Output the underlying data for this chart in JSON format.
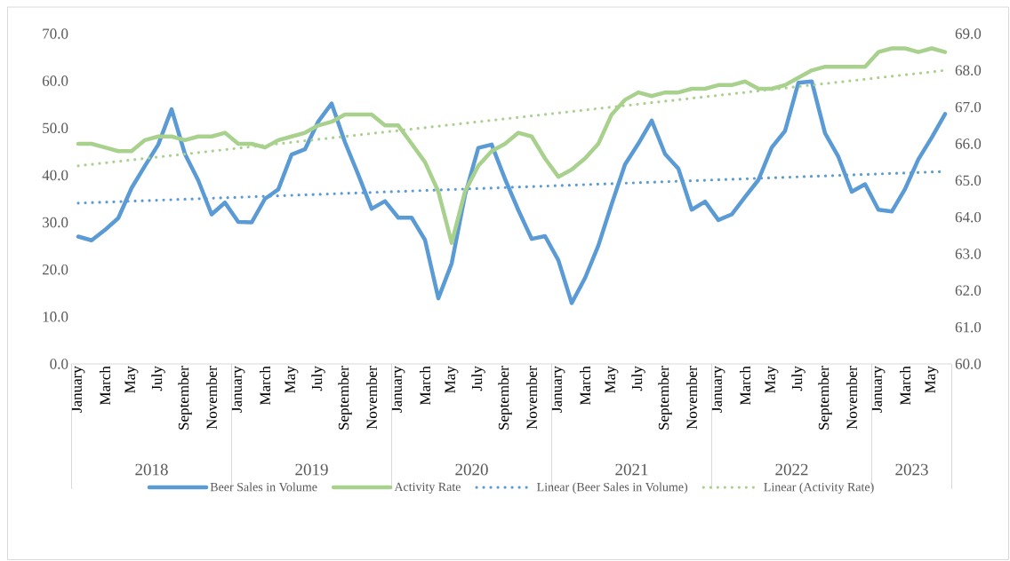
{
  "chart_data": {
    "type": "line",
    "x": [
      "2018-01",
      "2018-02",
      "2018-03",
      "2018-04",
      "2018-05",
      "2018-06",
      "2018-07",
      "2018-08",
      "2018-09",
      "2018-10",
      "2018-11",
      "2018-12",
      "2019-01",
      "2019-02",
      "2019-03",
      "2019-04",
      "2019-05",
      "2019-06",
      "2019-07",
      "2019-08",
      "2019-09",
      "2019-10",
      "2019-11",
      "2019-12",
      "2020-01",
      "2020-02",
      "2020-03",
      "2020-04",
      "2020-05",
      "2020-06",
      "2020-07",
      "2020-08",
      "2020-09",
      "2020-10",
      "2020-11",
      "2020-12",
      "2021-01",
      "2021-02",
      "2021-03",
      "2021-04",
      "2021-05",
      "2021-06",
      "2021-07",
      "2021-08",
      "2021-09",
      "2021-10",
      "2021-11",
      "2021-12",
      "2022-01",
      "2022-02",
      "2022-03",
      "2022-04",
      "2022-05",
      "2022-06",
      "2022-07",
      "2022-08",
      "2022-09",
      "2022-10",
      "2022-11",
      "2022-12",
      "2023-01",
      "2023-02",
      "2023-03",
      "2023-04",
      "2023-05",
      "2023-06"
    ],
    "series": [
      {
        "name": "Beer Sales in Volume",
        "color": "#5b9bd5",
        "values": [
          27.0,
          26.2,
          28.4,
          30.9,
          37.3,
          42.0,
          46.5,
          54.0,
          44.5,
          38.9,
          31.7,
          34.2,
          30.1,
          30.0,
          35.0,
          37.0,
          44.4,
          45.5,
          51.4,
          55.2,
          47.0,
          40.1,
          32.9,
          34.5,
          31.0,
          31.0,
          26.3,
          13.9,
          21.3,
          35.8,
          45.8,
          46.5,
          39.2,
          32.6,
          26.5,
          27.1,
          22.0,
          12.9,
          18.2,
          25.1,
          33.9,
          42.3,
          46.7,
          51.6,
          44.5,
          41.4,
          32.7,
          34.4,
          30.5,
          31.7,
          35.4,
          39.0,
          45.9,
          49.4,
          59.6,
          59.9,
          48.9,
          43.9,
          36.5,
          38.1,
          32.7,
          32.3,
          37.1,
          43.4,
          48.0,
          53.0
        ]
      },
      {
        "name": "Activity Rate",
        "color": "#a9d18e",
        "axis": "y2",
        "values": [
          66.0,
          66.0,
          65.9,
          65.8,
          65.8,
          66.1,
          66.2,
          66.2,
          66.1,
          66.2,
          66.2,
          66.3,
          66.0,
          66.0,
          65.9,
          66.1,
          66.2,
          66.3,
          66.5,
          66.6,
          66.8,
          66.8,
          66.8,
          66.5,
          66.5,
          66.0,
          65.5,
          64.7,
          63.3,
          64.7,
          65.4,
          65.8,
          66.0,
          66.3,
          66.2,
          65.6,
          65.1,
          65.3,
          65.6,
          66.0,
          66.8,
          67.2,
          67.4,
          67.3,
          67.4,
          67.4,
          67.5,
          67.5,
          67.6,
          67.6,
          67.7,
          67.5,
          67.5,
          67.6,
          67.8,
          68.0,
          68.1,
          68.1,
          68.1,
          68.1,
          68.5,
          68.6,
          68.6,
          68.5,
          68.6,
          68.5
        ]
      },
      {
        "name": "Linear (Beer Sales in Volume)",
        "color": "#5b9bd5",
        "line_style": "dotted",
        "x": [
          "2018-01",
          "2023-06"
        ],
        "values": [
          34.1,
          40.8
        ]
      },
      {
        "name": "Linear (Activity Rate)",
        "color": "#a9d18e",
        "line_style": "dotted",
        "axis": "y2",
        "x": [
          "2018-01",
          "2023-06"
        ],
        "values": [
          65.4,
          68.0
        ]
      }
    ],
    "xlim": [
      "2017-12-16",
      "2023-06-16"
    ],
    "xticks": [
      {
        "value": "2018-01",
        "label": "January"
      },
      {
        "value": "2018-03",
        "label": "March"
      },
      {
        "value": "2018-05",
        "label": "May"
      },
      {
        "value": "2018-07",
        "label": "July"
      },
      {
        "value": "2018-09",
        "label": "September"
      },
      {
        "value": "2018-11",
        "label": "November"
      },
      {
        "value": "2019-01",
        "label": "January"
      },
      {
        "value": "2019-03",
        "label": "March"
      },
      {
        "value": "2019-05",
        "label": "May"
      },
      {
        "value": "2019-07",
        "label": "July"
      },
      {
        "value": "2019-09",
        "label": "September"
      },
      {
        "value": "2019-11",
        "label": "November"
      },
      {
        "value": "2020-01",
        "label": "January"
      },
      {
        "value": "2020-03",
        "label": "March"
      },
      {
        "value": "2020-05",
        "label": "May"
      },
      {
        "value": "2020-07",
        "label": "July"
      },
      {
        "value": "2020-09",
        "label": "September"
      },
      {
        "value": "2020-11",
        "label": "November"
      },
      {
        "value": "2021-01",
        "label": "January"
      },
      {
        "value": "2021-03",
        "label": "March"
      },
      {
        "value": "2021-05",
        "label": "May"
      },
      {
        "value": "2021-07",
        "label": "July"
      },
      {
        "value": "2021-09",
        "label": "September"
      },
      {
        "value": "2021-11",
        "label": "November"
      },
      {
        "value": "2022-01",
        "label": "January"
      },
      {
        "value": "2022-03",
        "label": "March"
      },
      {
        "value": "2022-05",
        "label": "May"
      },
      {
        "value": "2022-07",
        "label": "July"
      },
      {
        "value": "2022-09",
        "label": "September"
      },
      {
        "value": "2022-11",
        "label": "November"
      },
      {
        "value": "2023-01",
        "label": "January"
      },
      {
        "value": "2023-03",
        "label": "March"
      },
      {
        "value": "2023-05",
        "label": "May"
      }
    ],
    "ylim": [
      0,
      70
    ],
    "yticks": [
      {
        "value": 0,
        "label": "0.0"
      },
      {
        "value": 10,
        "label": "10.0"
      },
      {
        "value": 20,
        "label": "20.0"
      },
      {
        "value": 30,
        "label": "30.0"
      },
      {
        "value": 40,
        "label": "40.0"
      },
      {
        "value": 50,
        "label": "50.0"
      },
      {
        "value": 60,
        "label": "60.0"
      },
      {
        "value": 70,
        "label": "70.0"
      }
    ],
    "y2lim": [
      60,
      69
    ],
    "y2ticks": [
      {
        "value": 60,
        "label": "60.0"
      },
      {
        "value": 61,
        "label": "61.0"
      },
      {
        "value": 62,
        "label": "62.0"
      },
      {
        "value": 63,
        "label": "63.0"
      },
      {
        "value": 64,
        "label": "64.0"
      },
      {
        "value": 65,
        "label": "65.0"
      },
      {
        "value": 66,
        "label": "66.0"
      },
      {
        "value": 67,
        "label": "67.0"
      },
      {
        "value": 68,
        "label": "68.0"
      },
      {
        "value": 69,
        "label": "69.0"
      }
    ],
    "annotations": [
      "2018",
      "2019",
      "2020",
      "2021",
      "2022",
      "2023"
    ],
    "legend": "bottom",
    "line_style": "solid"
  }
}
